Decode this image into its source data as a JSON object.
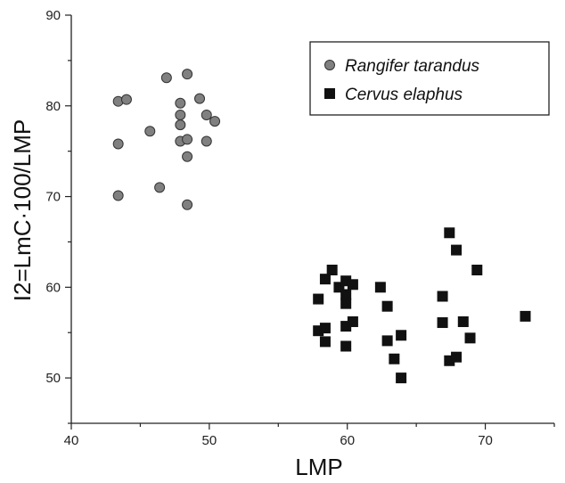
{
  "chart_data": {
    "type": "scatter",
    "xlabel": "LMP",
    "ylabel": "I2=LmC·100/LMP",
    "xlim": [
      40,
      75
    ],
    "ylim": [
      45,
      90
    ],
    "xticks": [
      40,
      50,
      60,
      70
    ],
    "yticks": [
      50,
      60,
      70,
      80,
      90
    ],
    "grid": false,
    "legend_position": "top-right",
    "series": [
      {
        "name": "Rangifer tarandus",
        "marker": "circle",
        "color": "#808080",
        "points": [
          [
            43.4,
            80.5
          ],
          [
            44.0,
            80.7
          ],
          [
            43.4,
            75.8
          ],
          [
            43.4,
            70.1
          ],
          [
            45.7,
            77.2
          ],
          [
            46.4,
            71.0
          ],
          [
            46.9,
            83.1
          ],
          [
            47.9,
            80.3
          ],
          [
            47.9,
            79.0
          ],
          [
            47.9,
            77.9
          ],
          [
            47.9,
            76.1
          ],
          [
            48.4,
            83.5
          ],
          [
            48.4,
            76.3
          ],
          [
            48.4,
            74.4
          ],
          [
            48.4,
            69.1
          ],
          [
            49.3,
            80.8
          ],
          [
            49.8,
            79.0
          ],
          [
            49.8,
            76.1
          ],
          [
            50.4,
            78.3
          ]
        ]
      },
      {
        "name": "Cervus elaphus",
        "marker": "square",
        "color": "#111111",
        "points": [
          [
            57.9,
            58.7
          ],
          [
            57.9,
            55.2
          ],
          [
            58.4,
            60.9
          ],
          [
            58.4,
            55.5
          ],
          [
            58.4,
            54.0
          ],
          [
            58.9,
            61.9
          ],
          [
            59.4,
            60.0
          ],
          [
            59.9,
            60.7
          ],
          [
            59.9,
            59.2
          ],
          [
            59.9,
            58.2
          ],
          [
            59.9,
            55.7
          ],
          [
            59.9,
            53.5
          ],
          [
            60.4,
            60.3
          ],
          [
            60.4,
            56.2
          ],
          [
            62.4,
            60.0
          ],
          [
            62.9,
            57.9
          ],
          [
            62.9,
            54.1
          ],
          [
            63.4,
            52.1
          ],
          [
            63.9,
            54.7
          ],
          [
            63.9,
            50.0
          ],
          [
            66.9,
            59.0
          ],
          [
            66.9,
            56.1
          ],
          [
            67.4,
            66.0
          ],
          [
            67.4,
            51.9
          ],
          [
            67.9,
            64.1
          ],
          [
            67.9,
            52.3
          ],
          [
            68.4,
            56.2
          ],
          [
            68.9,
            54.4
          ],
          [
            69.4,
            61.9
          ],
          [
            72.9,
            56.8
          ]
        ]
      }
    ]
  }
}
